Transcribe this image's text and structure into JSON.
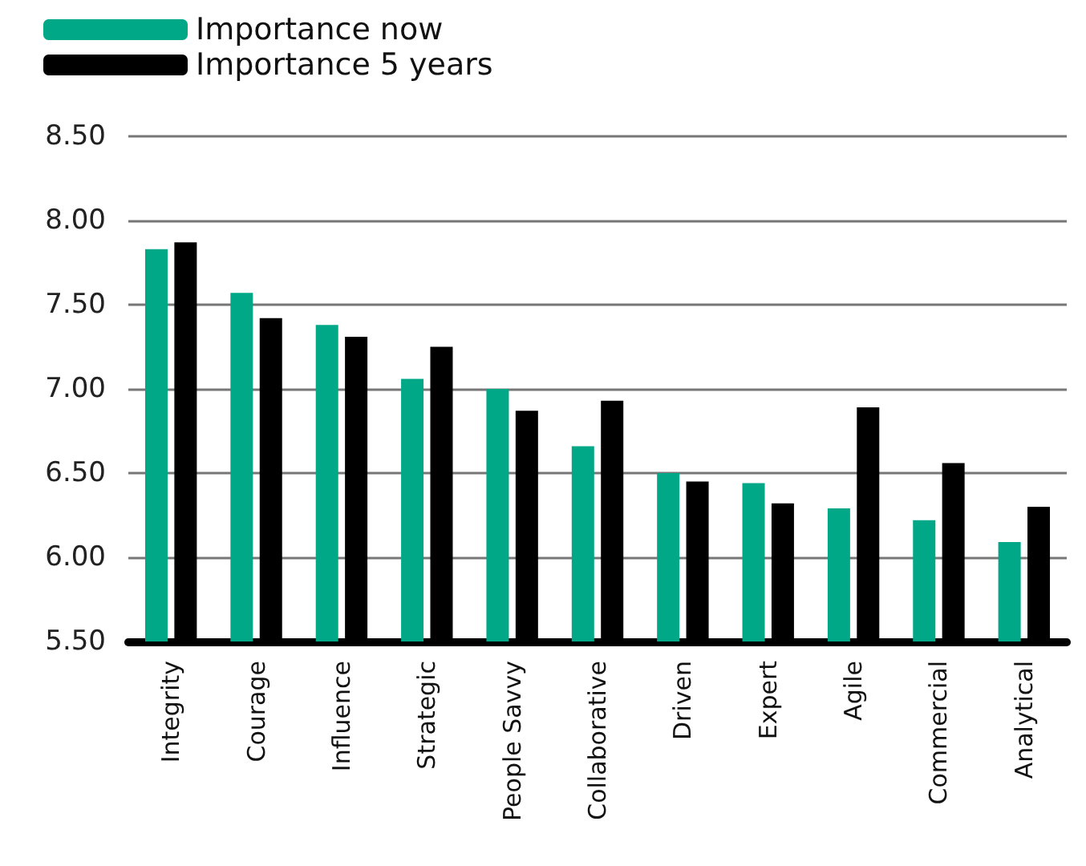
{
  "chart_data": {
    "type": "bar",
    "categories": [
      "Integrity",
      "Courage",
      "Influence",
      "Strategic",
      "People Savvy",
      "Collaborative",
      "Driven",
      "Expert",
      "Agile",
      "Commercial",
      "Analytical"
    ],
    "series": [
      {
        "name": "Importance now",
        "color": "#00a887",
        "values": [
          7.83,
          7.57,
          7.38,
          7.06,
          7.0,
          6.66,
          6.5,
          6.44,
          6.29,
          6.22,
          6.09
        ]
      },
      {
        "name": "Importance 5 years",
        "color": "#000000",
        "values": [
          7.87,
          7.42,
          7.31,
          7.25,
          6.87,
          6.93,
          6.45,
          6.32,
          6.89,
          6.56,
          6.3
        ]
      }
    ],
    "ylim": [
      5.5,
      8.5
    ],
    "yticks": [
      {
        "value": 5.5,
        "label": "5.50"
      },
      {
        "value": 6,
        "label": "6.00"
      },
      {
        "value": 6.5,
        "label": "6.50"
      },
      {
        "value": 7,
        "label": "7.00"
      },
      {
        "value": 7.5,
        "label": "7.50"
      },
      {
        "value": 8,
        "label": "8.00"
      },
      {
        "value": 8.5,
        "label": "8.50"
      }
    ],
    "grid": "y",
    "legend": "top left"
  }
}
